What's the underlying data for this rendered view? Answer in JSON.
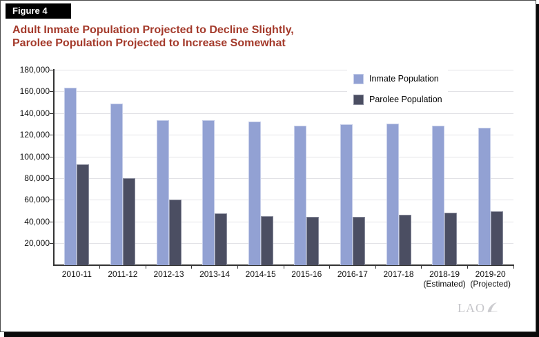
{
  "figure_label": "Figure 4",
  "title": {
    "line1": "Adult Inmate Population Projected to Decline Slightly,",
    "line2": "Parolee Population Projected to Increase Somewhat",
    "color": "#a43a2b"
  },
  "logo": {
    "text": "LAO"
  },
  "colors": {
    "inmate_bar": "#92a1d3",
    "parolee_bar": "#4b4e62",
    "gridline": "#e2e2e6",
    "axis": "#333333",
    "title_red": "#a43a2b",
    "figure_label_bg": "#000000",
    "logo_gray": "#c6c6ca"
  },
  "chart_data": {
    "type": "bar",
    "title": "Adult Inmate Population Projected to Decline Slightly, Parolee Population Projected to Increase Somewhat",
    "categories": [
      "2010-11",
      "2011-12",
      "2012-13",
      "2013-14",
      "2014-15",
      "2015-16",
      "2016-17",
      "2017-18",
      "2018-19",
      "2019-20"
    ],
    "category_sublabels": [
      "",
      "",
      "",
      "",
      "",
      "",
      "",
      "",
      "(Estimated)",
      "(Projected)"
    ],
    "series": [
      {
        "name": "Inmate Population",
        "color": "#92a1d3",
        "values": [
          164000,
          149000,
          134000,
          134000,
          132500,
          129000,
          130000,
          130500,
          128500,
          127000
        ]
      },
      {
        "name": "Parolee Population",
        "color": "#4b4e62",
        "values": [
          93000,
          80000,
          60500,
          48000,
          45000,
          44500,
          44500,
          46500,
          48500,
          50000
        ]
      }
    ],
    "xlabel": "",
    "ylabel": "",
    "ylim": [
      0,
      180000
    ],
    "ytick_step": 20000,
    "yticklabels": [
      "20,000",
      "40,000",
      "60,000",
      "80,000",
      "100,000",
      "120,000",
      "140,000",
      "160,000",
      "180,000"
    ],
    "grid": true,
    "legend_position": "top-right"
  }
}
